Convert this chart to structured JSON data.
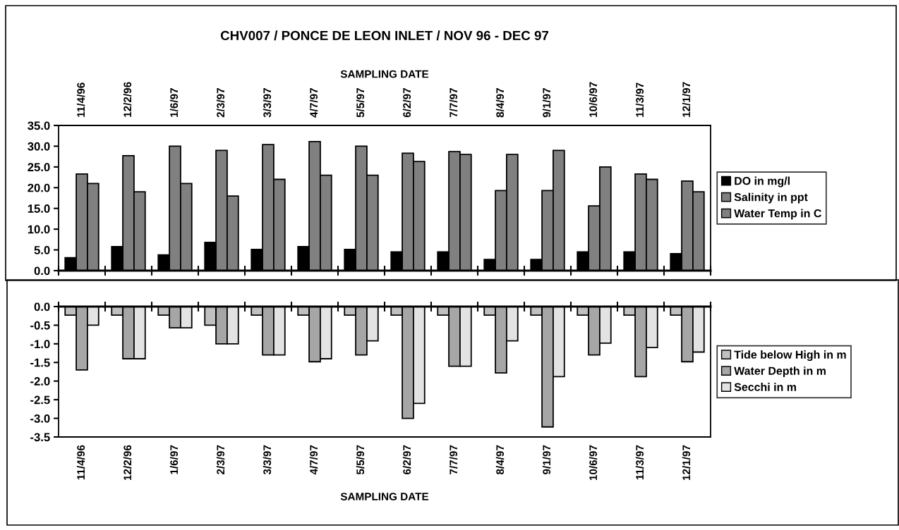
{
  "chart_data": [
    {
      "type": "bar",
      "title": "CHV007 / PONCE DE LEON INLET / NOV 96 - DEC 97",
      "xlabel": "SAMPLING DATE",
      "legend": "right",
      "grid": false,
      "categories": [
        "11/4/96",
        "12/2/96",
        "1/6/97",
        "2/3/97",
        "3/3/97",
        "4/7/97",
        "5/5/97",
        "6/2/97",
        "7/7/97",
        "8/4/97",
        "9/1/97",
        "10/6/97",
        "11/3/97",
        "12/1/97"
      ],
      "ylim": [
        0,
        35
      ],
      "yticks": [
        {
          "value": 0,
          "label": "0.0"
        },
        {
          "value": 5,
          "label": "5.0"
        },
        {
          "value": 10,
          "label": "10.0"
        },
        {
          "value": 15,
          "label": "15.0"
        },
        {
          "value": 20,
          "label": "20.0"
        },
        {
          "value": 25,
          "label": "25.0"
        },
        {
          "value": 30,
          "label": "30.0"
        },
        {
          "value": 35,
          "label": "35.0"
        }
      ],
      "series": [
        {
          "name": "DO in mg/l",
          "color": "#000000",
          "values": [
            3.1,
            5.8,
            3.8,
            6.8,
            5.1,
            5.8,
            5.1,
            4.5,
            4.5,
            2.7,
            2.7,
            4.5,
            4.5,
            4.1
          ]
        },
        {
          "name": "Salinity in ppt",
          "color": "#808080",
          "values": [
            23.3,
            27.7,
            30.0,
            29.0,
            30.4,
            31.1,
            30.0,
            28.3,
            28.7,
            19.3,
            19.3,
            15.6,
            23.3,
            21.6
          ]
        },
        {
          "name": "Water Temp in C",
          "color": "#808080",
          "values": [
            21.0,
            19.0,
            21.0,
            18.0,
            22.0,
            23.0,
            23.0,
            26.3,
            28.0,
            28.0,
            29.0,
            25.0,
            22.0,
            19.0
          ]
        }
      ]
    },
    {
      "type": "bar",
      "xlabel": "SAMPLING DATE",
      "legend": "right",
      "grid": false,
      "categories": [
        "11/4/96",
        "12/2/96",
        "1/6/97",
        "2/3/97",
        "3/3/97",
        "4/7/97",
        "5/5/97",
        "6/2/97",
        "7/7/97",
        "8/4/97",
        "9/1/97",
        "10/6/97",
        "11/3/97",
        "12/1/97"
      ],
      "ylim": [
        -3.5,
        0
      ],
      "yticks": [
        {
          "value": -3.5,
          "label": "-3.5"
        },
        {
          "value": -3,
          "label": "-3.0"
        },
        {
          "value": -2.5,
          "label": "-2.5"
        },
        {
          "value": -2,
          "label": "-2.0"
        },
        {
          "value": -1.5,
          "label": "-1.5"
        },
        {
          "value": -1,
          "label": "-1.0"
        },
        {
          "value": -0.5,
          "label": "-0.5"
        },
        {
          "value": 0,
          "label": "0.0"
        }
      ],
      "series": [
        {
          "name": "Tide below High in m",
          "color": "#c0c0c0",
          "values": [
            -0.23,
            -0.23,
            -0.23,
            -0.5,
            -0.23,
            -0.23,
            -0.23,
            -0.23,
            -0.23,
            -0.23,
            -0.23,
            -0.23,
            -0.23,
            -0.23
          ]
        },
        {
          "name": "Water Depth in m",
          "color": "#a6a6a6",
          "values": [
            -1.7,
            -1.4,
            -0.57,
            -1.0,
            -1.3,
            -1.48,
            -1.3,
            -3.0,
            -1.6,
            -1.78,
            -3.23,
            -1.3,
            -1.88,
            -1.48
          ]
        },
        {
          "name": "Secchi in m",
          "color": "#e3e3e3",
          "values": [
            -0.5,
            -1.4,
            -0.57,
            -1.0,
            -1.3,
            -1.4,
            -0.92,
            -2.6,
            -1.6,
            -0.92,
            -1.88,
            -0.98,
            -1.1,
            -1.22
          ]
        }
      ]
    }
  ]
}
